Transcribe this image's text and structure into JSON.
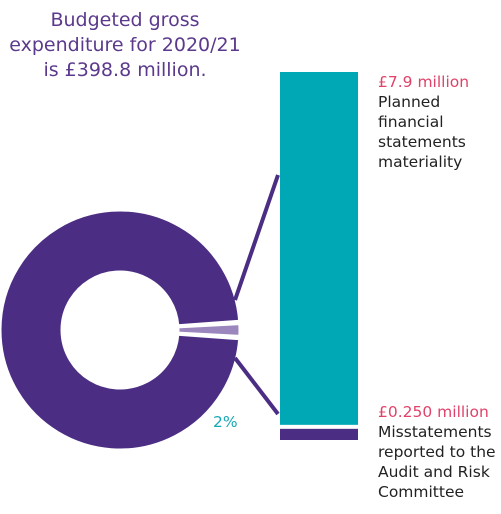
{
  "headline": {
    "lines": [
      "Budgeted gross",
      "expenditure for 2020/21",
      "is £398.8 million."
    ]
  },
  "chart_data": [
    {
      "type": "pie",
      "title": "",
      "total": 398.8,
      "unit": "£ million",
      "slices": [
        {
          "value": 98,
          "color": "#4b2e83"
        },
        {
          "value": 2,
          "color": "#9b87bd",
          "label": "2%"
        }
      ]
    },
    {
      "type": "bar",
      "title": "",
      "stacked": true,
      "unit": "£ million",
      "series": [
        {
          "name": "",
          "value": 7.9,
          "value_label": "£7.9 million",
          "description": [
            "Planned",
            "financial",
            "statements",
            "materiality"
          ],
          "color": "#00a7b5"
        },
        {
          "name": "",
          "value": 0.25,
          "value_label": "£0.250 million",
          "description": [
            "Misstatements",
            "reported to the",
            "Audit and Risk",
            "Committee"
          ],
          "color": "#4b2e83"
        }
      ]
    }
  ],
  "colors": {
    "purple": "#4b2e83",
    "light_purple": "#9b87bd",
    "teal": "#00a7b5",
    "pink": "#e0436a",
    "headline": "#5b3a8c"
  }
}
